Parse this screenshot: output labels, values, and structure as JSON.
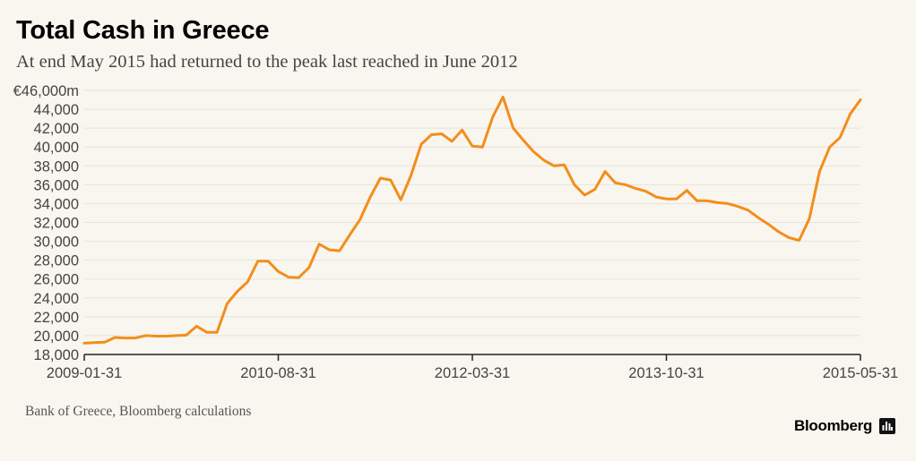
{
  "header": {
    "title": "Total Cash in Greece",
    "subtitle": "At end May 2015 had returned to the peak last reached in June 2012"
  },
  "footer": {
    "source": "Bank of Greece, Bloomberg calculations",
    "brand": "Bloomberg",
    "brand_icon": "bloomberg-chart-icon"
  },
  "colors": {
    "line": "#f28e1c",
    "grid": "#e6e3da",
    "axis": "#222222",
    "tick_label": "#444444",
    "background": "#f8f6ef"
  },
  "chart_data": {
    "type": "line",
    "title": "Total Cash in Greece",
    "subtitle": "At end May 2015 had returned to the peak last reached in June 2012",
    "xlabel": "",
    "ylabel": "",
    "y_unit_label": "€46,000m",
    "ylim": [
      18000,
      46000
    ],
    "y_ticks": [
      {
        "value": 46000,
        "label": "€46,000m"
      },
      {
        "value": 44000,
        "label": "44,000"
      },
      {
        "value": 42000,
        "label": "42,000"
      },
      {
        "value": 40000,
        "label": "40,000"
      },
      {
        "value": 38000,
        "label": "38,000"
      },
      {
        "value": 36000,
        "label": "36,000"
      },
      {
        "value": 34000,
        "label": "34,000"
      },
      {
        "value": 32000,
        "label": "32,000"
      },
      {
        "value": 30000,
        "label": "30,000"
      },
      {
        "value": 28000,
        "label": "28,000"
      },
      {
        "value": 26000,
        "label": "26,000"
      },
      {
        "value": 24000,
        "label": "24,000"
      },
      {
        "value": 22000,
        "label": "22,000"
      },
      {
        "value": 20000,
        "label": "20,000"
      },
      {
        "value": 18000,
        "label": "18,000"
      }
    ],
    "x_ticks": [
      {
        "index": 0,
        "label": "2009-01-31"
      },
      {
        "index": 19,
        "label": "2010-08-31"
      },
      {
        "index": 38,
        "label": "2012-03-31"
      },
      {
        "index": 57,
        "label": "2013-10-31"
      },
      {
        "index": 76,
        "label": "2015-05-31"
      }
    ],
    "grid": true,
    "series": [
      {
        "name": "Total Cash in Greece",
        "x": [
          "2009-01-31",
          "2009-02-28",
          "2009-03-31",
          "2009-04-30",
          "2009-05-31",
          "2009-06-30",
          "2009-07-31",
          "2009-08-31",
          "2009-09-30",
          "2009-10-31",
          "2009-11-30",
          "2009-12-31",
          "2010-01-31",
          "2010-02-28",
          "2010-03-31",
          "2010-04-30",
          "2010-05-31",
          "2010-06-30",
          "2010-07-31",
          "2010-08-31",
          "2010-09-30",
          "2010-10-31",
          "2010-11-30",
          "2010-12-31",
          "2011-01-31",
          "2011-02-28",
          "2011-03-31",
          "2011-04-30",
          "2011-05-31",
          "2011-06-30",
          "2011-07-31",
          "2011-08-31",
          "2011-09-30",
          "2011-10-31",
          "2011-11-30",
          "2011-12-31",
          "2012-01-31",
          "2012-02-29",
          "2012-03-31",
          "2012-04-30",
          "2012-05-31",
          "2012-06-30",
          "2012-07-31",
          "2012-08-31",
          "2012-09-30",
          "2012-10-31",
          "2012-11-30",
          "2012-12-31",
          "2013-01-31",
          "2013-02-28",
          "2013-03-31",
          "2013-04-30",
          "2013-05-31",
          "2013-06-30",
          "2013-07-31",
          "2013-08-31",
          "2013-09-30",
          "2013-10-31",
          "2013-11-30",
          "2013-12-31",
          "2014-01-31",
          "2014-02-28",
          "2014-03-31",
          "2014-04-30",
          "2014-05-31",
          "2014-06-30",
          "2014-07-31",
          "2014-08-31",
          "2014-09-30",
          "2014-10-31",
          "2014-11-30",
          "2014-12-31",
          "2015-01-31",
          "2015-02-28",
          "2015-03-31",
          "2015-04-30",
          "2015-05-31"
        ],
        "values": [
          19200,
          19250,
          19300,
          19800,
          19750,
          19750,
          20000,
          19950,
          19950,
          20000,
          20050,
          21000,
          20350,
          20350,
          23400,
          24700,
          25700,
          27900,
          27900,
          26800,
          26200,
          26150,
          27200,
          29700,
          29100,
          29000,
          30700,
          32300,
          34700,
          36700,
          36500,
          34400,
          37000,
          40300,
          41300,
          41400,
          40600,
          41800,
          40100,
          40000,
          43200,
          45300,
          42000,
          40700,
          39500,
          38600,
          38000,
          38100,
          36000,
          34900,
          35500,
          37400,
          36200,
          36000,
          35600,
          35300,
          34700,
          34500,
          34500,
          35400,
          34300,
          34300,
          34100,
          34000,
          33700,
          33300,
          32500,
          31800,
          31000,
          30400,
          30100,
          32400,
          37400,
          40000,
          41000,
          43500,
          45000
        ]
      }
    ]
  }
}
